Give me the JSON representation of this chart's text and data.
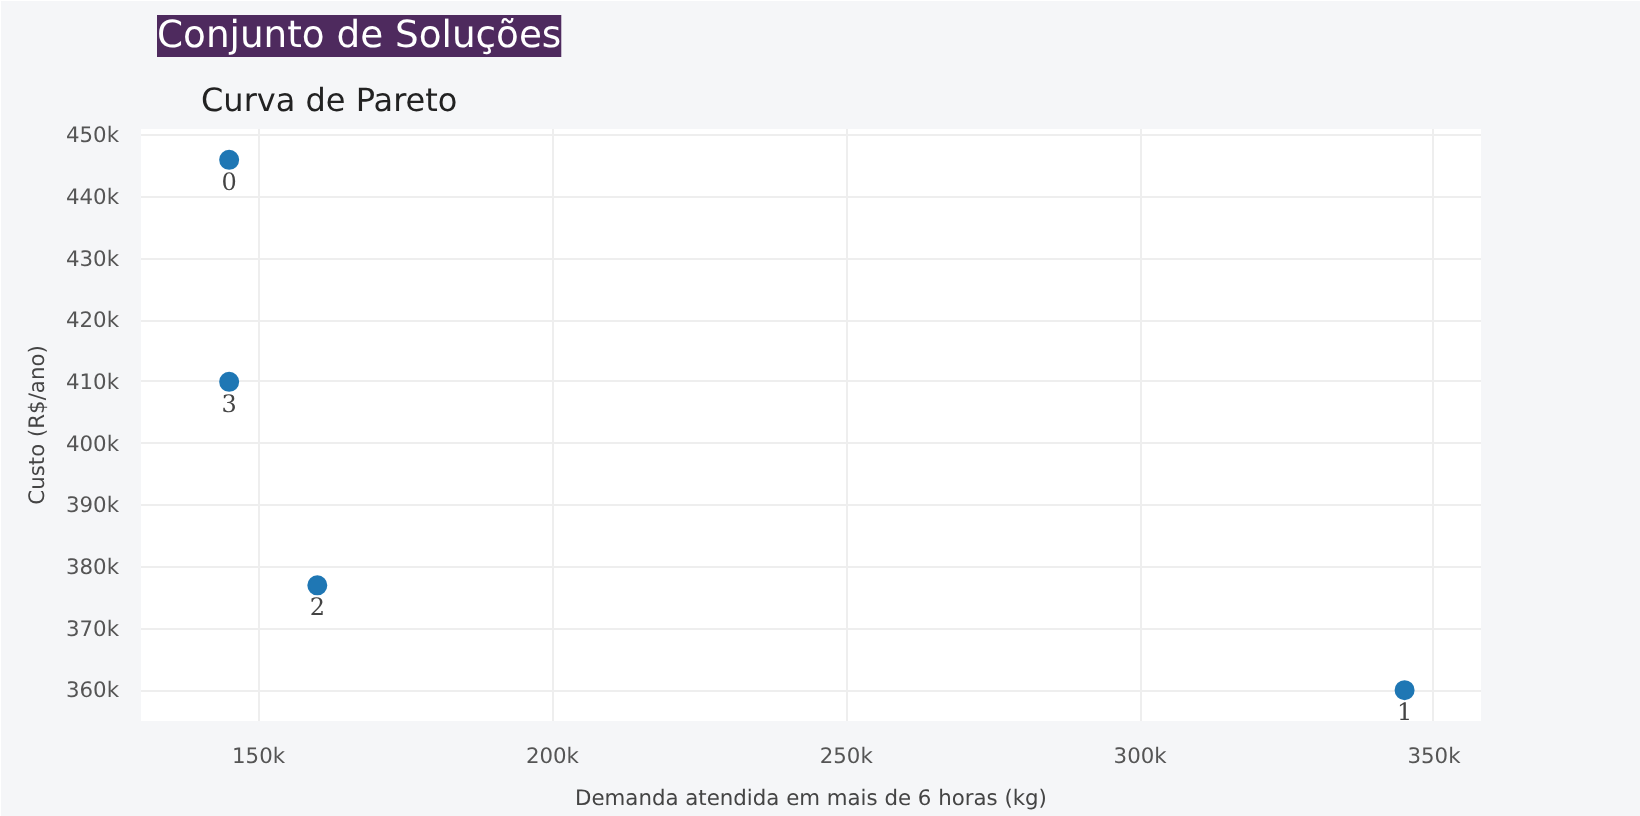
{
  "chart_data": {
    "type": "scatter",
    "title": "Conjunto de Soluções",
    "subtitle": "Curva de Pareto",
    "xlabel": "Demanda atendida em mais de 6 horas (kg)",
    "ylabel": "Custo (R$/ano)",
    "x": [
      145000,
      345000,
      160000,
      145000
    ],
    "series": [
      {
        "color": "#1f77b4",
        "values": [
          446000,
          360000,
          377000,
          410000
        ]
      }
    ],
    "annotations": [
      {
        "text": "0",
        "x": 145000,
        "y": 446000
      },
      {
        "text": "1",
        "x": 345000,
        "y": 360000
      },
      {
        "text": "2",
        "x": 160000,
        "y": 377000
      },
      {
        "text": "3",
        "x": 145000,
        "y": 410000
      }
    ],
    "xlim": [
      130000,
      358000
    ],
    "ylim": [
      355000,
      451000
    ],
    "xticks": [
      {
        "value": 150000,
        "label": "150k"
      },
      {
        "value": 200000,
        "label": "200k"
      },
      {
        "value": 250000,
        "label": "250k"
      },
      {
        "value": 300000,
        "label": "300k"
      },
      {
        "value": 350000,
        "label": "350k"
      }
    ],
    "yticks": [
      {
        "value": 360000,
        "label": "360k"
      },
      {
        "value": 370000,
        "label": "370k"
      },
      {
        "value": 380000,
        "label": "380k"
      },
      {
        "value": 390000,
        "label": "390k"
      },
      {
        "value": 400000,
        "label": "400k"
      },
      {
        "value": 410000,
        "label": "410k"
      },
      {
        "value": 420000,
        "label": "420k"
      },
      {
        "value": 430000,
        "label": "430k"
      },
      {
        "value": 440000,
        "label": "440k"
      },
      {
        "value": 450000,
        "label": "450k"
      }
    ],
    "grid": true,
    "marker": "circle"
  }
}
